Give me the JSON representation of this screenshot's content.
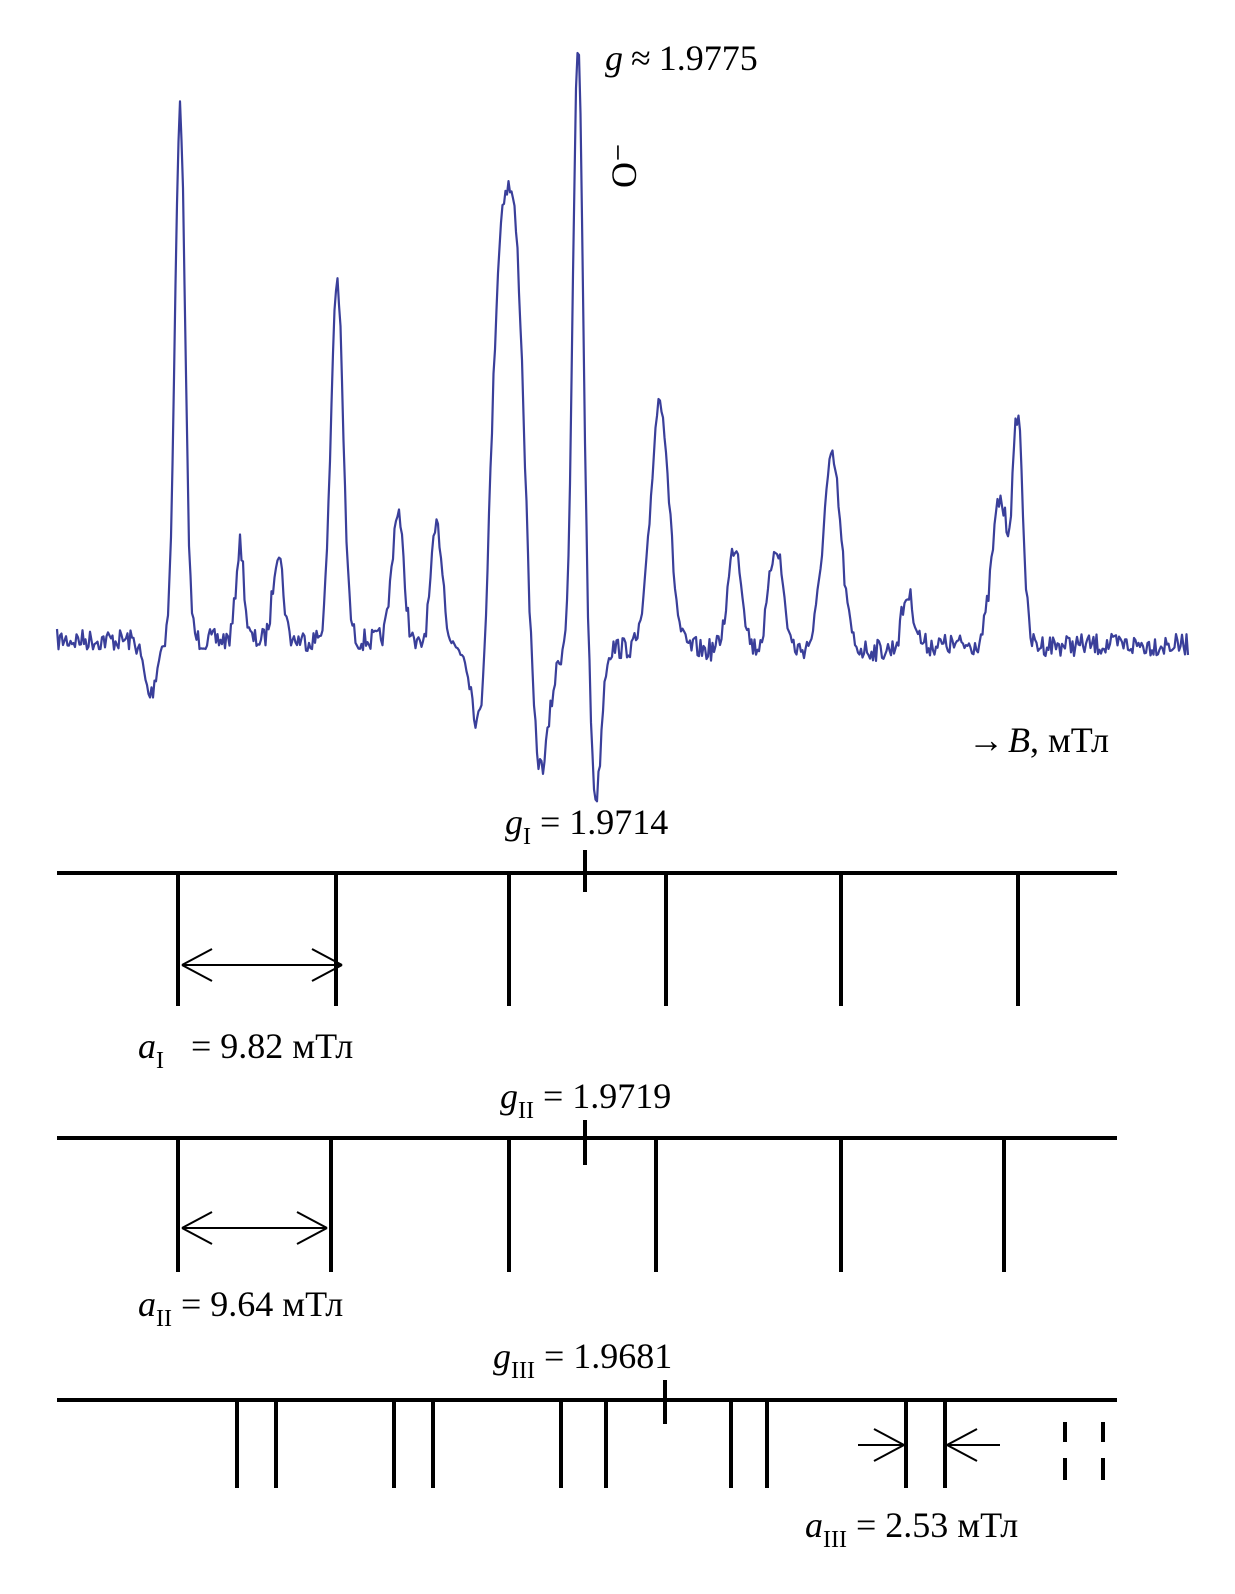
{
  "chart_data": {
    "type": "line",
    "title": "",
    "spectrum": {
      "color": "#3a3f9a",
      "peak_label": {
        "symbol": "g",
        "relation": "≈",
        "value": "1.9775"
      },
      "species_label": "O⁻",
      "axis_label": {
        "arrow": "→",
        "symbol": "B",
        "unit": ", мТл"
      }
    },
    "stick_diagrams": [
      {
        "id": "I",
        "g_label": {
          "symbol": "g",
          "sub": "I",
          "text": " = 1.9714"
        },
        "a_label": {
          "symbol": "a",
          "sub": "I",
          "text": " = 9.82 мТл"
        },
        "line_count": 6
      },
      {
        "id": "II",
        "g_label": {
          "symbol": "g",
          "sub": "II",
          "text": " = 1.9719"
        },
        "a_label": {
          "symbol": "a",
          "sub": "II",
          "text": " = 9.64 мТл"
        },
        "line_count": 6
      },
      {
        "id": "III",
        "g_label": {
          "symbol": "g",
          "sub": "III",
          "text": " = 1.9681"
        },
        "a_label": {
          "symbol": "a",
          "sub": "III",
          "text": " = 2.53 мТл"
        },
        "line_count": 12,
        "dashed_line_count": 2
      }
    ]
  }
}
